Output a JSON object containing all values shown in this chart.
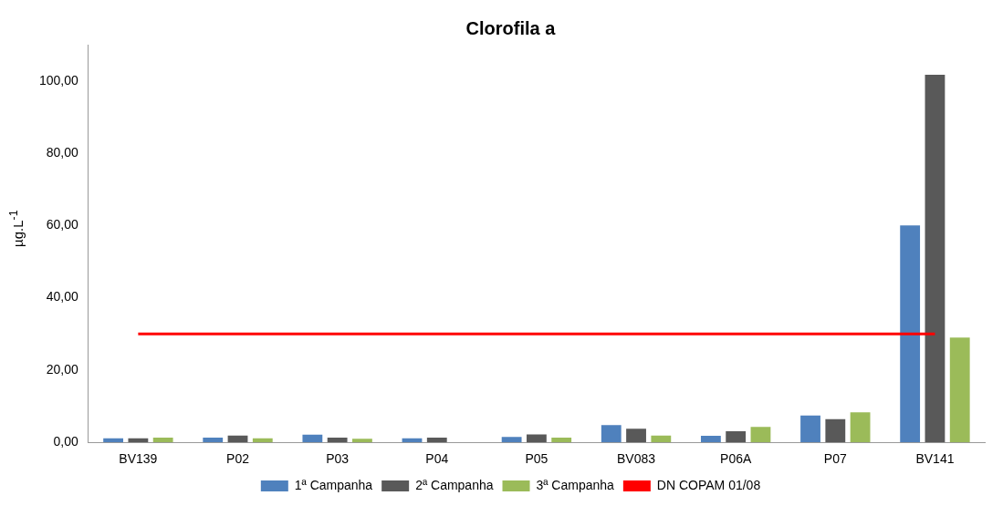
{
  "chart_data": {
    "type": "bar",
    "title": "Clorofila a",
    "ylabel": "µg.L$^{-1}$",
    "categories": [
      "BV139",
      "P02",
      "P03",
      "P04",
      "P05",
      "BV083",
      "P06A",
      "P07",
      "BV141"
    ],
    "series": [
      {
        "name": "1ª Campanha",
        "color": "#4f81bd",
        "values": [
          1.1,
          1.3,
          2.1,
          1.1,
          1.5,
          4.8,
          1.8,
          7.4,
          60
        ]
      },
      {
        "name": "2ª Campanha",
        "color": "#595959",
        "values": [
          1.1,
          1.9,
          1.3,
          1.3,
          2.2,
          3.8,
          3.1,
          6.4,
          101.7
        ]
      },
      {
        "name": "3ª Campanha",
        "color": "#9bbb59",
        "values": [
          1.3,
          1.1,
          1.0,
          null,
          1.3,
          1.9,
          4.3,
          8.3,
          29
        ]
      },
      {
        "name": "DN COPAM 01/08",
        "type": "line",
        "color": "#ff0000",
        "values": [
          30,
          30,
          30,
          30,
          30,
          30,
          30,
          30,
          30
        ]
      }
    ],
    "ylim": [
      0,
      110
    ],
    "yticks": [
      {
        "value": 0,
        "label": "0,00"
      },
      {
        "value": 20,
        "label": "20,00"
      },
      {
        "value": 40,
        "label": "40,00"
      },
      {
        "value": 60,
        "label": "60,00"
      },
      {
        "value": 80,
        "label": "80,00"
      },
      {
        "value": 100,
        "label": "100,00"
      }
    ],
    "grid": false,
    "legend": "bottom",
    "marker": "none"
  }
}
